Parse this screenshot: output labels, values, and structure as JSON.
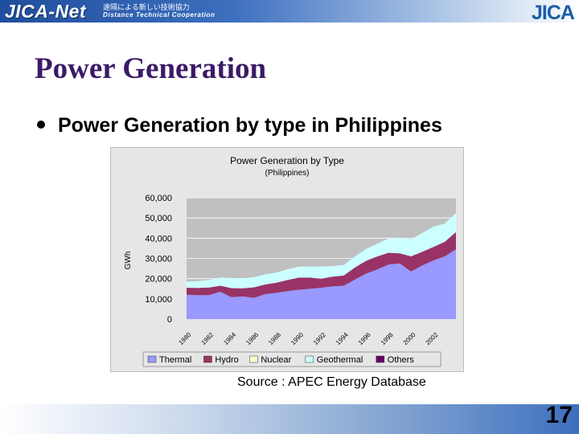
{
  "header": {
    "logo": "JICA-Net",
    "logo_jp": "遠隔による新しい技術協力",
    "logo_en": "Distance Technical Cooperation",
    "brand": "JICA"
  },
  "slide": {
    "title": "Power Generation",
    "bullet": "Power Generation by type in Philippines",
    "source": "Source : APEC Energy Database",
    "page_number": "17"
  },
  "colors": {
    "thermal": "#9999ff",
    "hydro": "#993366",
    "nuclear": "#ffffcc",
    "geothermal": "#ccffff",
    "others": "#660066",
    "plot_bg": "#c0c0c0",
    "title_color": "#3b1a66"
  },
  "chart_data": {
    "type": "area",
    "stacked": true,
    "title": "Power Generation by Type",
    "subtitle": "(Philippines)",
    "xlabel": "",
    "ylabel": "GWh",
    "ylim": [
      0,
      60000
    ],
    "yticks": [
      "60,000",
      "50,000",
      "40,000",
      "30,000",
      "20,000",
      "10,000",
      "0"
    ],
    "xticks": [
      "1980",
      "1982",
      "1984",
      "1986",
      "1988",
      "1990",
      "1992",
      "1994",
      "1996",
      "1998",
      "2000",
      "2002"
    ],
    "x": [
      1980,
      1981,
      1982,
      1983,
      1984,
      1985,
      1986,
      1987,
      1988,
      1989,
      1990,
      1991,
      1992,
      1993,
      1994,
      1995,
      1996,
      1997,
      1998,
      1999,
      2000,
      2001,
      2002,
      2003,
      2004
    ],
    "grid": true,
    "legend_position": "bottom",
    "series": [
      {
        "name": "Thermal",
        "values": [
          12000,
          11800,
          11800,
          13500,
          10800,
          11200,
          10500,
          12300,
          13000,
          13800,
          14500,
          15000,
          15500,
          16200,
          16500,
          19500,
          22500,
          24500,
          27000,
          27500,
          23500,
          26500,
          29000,
          31000,
          34500
        ]
      },
      {
        "name": "Hydro",
        "values": [
          3500,
          3600,
          3800,
          3000,
          4500,
          4000,
          5200,
          4800,
          5000,
          5500,
          6000,
          5500,
          4500,
          4800,
          5000,
          6000,
          6300,
          6500,
          5800,
          5000,
          7500,
          6800,
          6700,
          7200,
          8500
        ]
      },
      {
        "name": "Nuclear",
        "values": [
          0,
          0,
          0,
          0,
          0,
          0,
          0,
          0,
          0,
          0,
          0,
          0,
          0,
          0,
          0,
          0,
          0,
          0,
          0,
          0,
          0,
          0,
          0,
          0,
          0
        ]
      },
      {
        "name": "Geothermal",
        "values": [
          3000,
          3300,
          3700,
          4000,
          5000,
          5000,
          5000,
          5000,
          5000,
          5300,
          5400,
          5500,
          6000,
          5200,
          5200,
          5500,
          5800,
          6300,
          7000,
          7500,
          8500,
          9200,
          10000,
          9000,
          9500
        ]
      },
      {
        "name": "Others",
        "values": [
          0,
          0,
          0,
          0,
          0,
          0,
          0,
          0,
          0,
          0,
          0,
          0,
          0,
          0,
          0,
          0,
          0,
          0,
          0,
          0,
          0,
          0,
          0,
          0,
          0
        ]
      }
    ]
  }
}
